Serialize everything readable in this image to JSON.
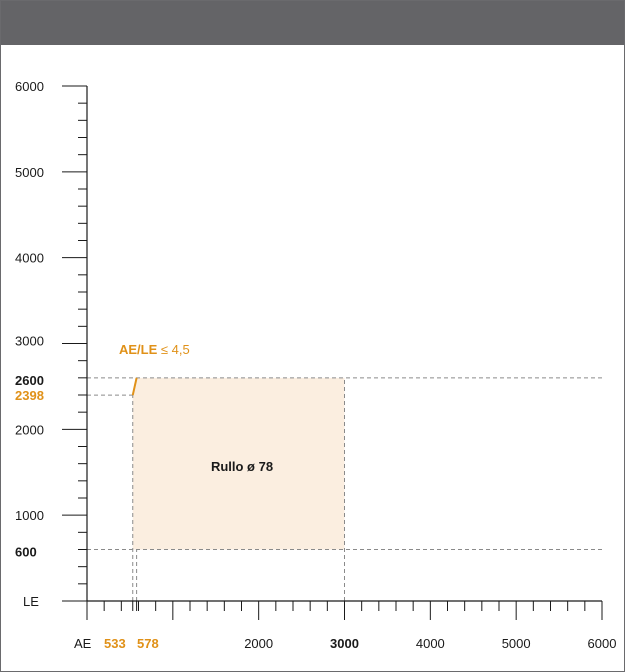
{
  "colors": {
    "header": "#646467",
    "frame": "#6a6a6d",
    "axis": "#1a1a1a",
    "region_fill": "#fbeee0",
    "guide": "#8a8a8a",
    "highlight": "#e09118",
    "text": "#1a1a1a"
  },
  "chart_data": {
    "type": "area",
    "x_axis_label": "AE",
    "y_axis_label": "LE",
    "xlim": [
      0,
      6000
    ],
    "ylim": [
      0,
      6000
    ],
    "x_major_ticks": [
      0,
      1000,
      2000,
      3000,
      4000,
      5000,
      6000
    ],
    "y_major_ticks": [
      0,
      1000,
      2000,
      3000,
      4000,
      5000,
      6000
    ],
    "minor_tick_step": 200,
    "x_tick_labels": [
      {
        "value": 533,
        "text": "533",
        "style": "highlight"
      },
      {
        "value": 578,
        "text": "578",
        "style": "highlight"
      },
      {
        "value": 2000,
        "text": "2000",
        "style": "normal"
      },
      {
        "value": 3000,
        "text": "3000",
        "style": "bold"
      },
      {
        "value": 4000,
        "text": "4000",
        "style": "normal"
      },
      {
        "value": 5000,
        "text": "5000",
        "style": "normal"
      },
      {
        "value": 6000,
        "text": "6000",
        "style": "normal"
      }
    ],
    "y_tick_labels": [
      {
        "value": 600,
        "text": "600",
        "style": "bold"
      },
      {
        "value": 1000,
        "text": "1000",
        "style": "normal"
      },
      {
        "value": 2000,
        "text": "2000",
        "style": "normal"
      },
      {
        "value": 2398,
        "text": "2398",
        "style": "highlight"
      },
      {
        "value": 2600,
        "text": "2600",
        "style": "bold"
      },
      {
        "value": 3000,
        "text": "3000",
        "style": "normal"
      },
      {
        "value": 4000,
        "text": "4000",
        "style": "normal"
      },
      {
        "value": 5000,
        "text": "5000",
        "style": "normal"
      },
      {
        "value": 6000,
        "text": "6000",
        "style": "normal"
      }
    ],
    "region": {
      "label": "Rullo ø 78",
      "polygon": [
        [
          578,
          600
        ],
        [
          3000,
          600
        ],
        [
          3000,
          2600
        ],
        [
          578,
          2600
        ],
        [
          533,
          2398
        ],
        [
          533,
          600
        ]
      ]
    },
    "constraint_line": {
      "label_prefix": "AE/LE",
      "label_suffix": " ≤ 4,5",
      "points": [
        [
          533,
          2398
        ],
        [
          578,
          2600
        ]
      ]
    },
    "guide_lines": {
      "horizontal": [
        {
          "y": 2600,
          "x_to": 6000
        },
        {
          "y": 2398,
          "x_to": 533
        },
        {
          "y": 600,
          "x_to": 6000
        }
      ],
      "vertical": [
        {
          "x": 533,
          "y_to": 2398
        },
        {
          "x": 578,
          "y_to": 600
        },
        {
          "x": 3000,
          "y_to": 2600
        }
      ]
    }
  }
}
